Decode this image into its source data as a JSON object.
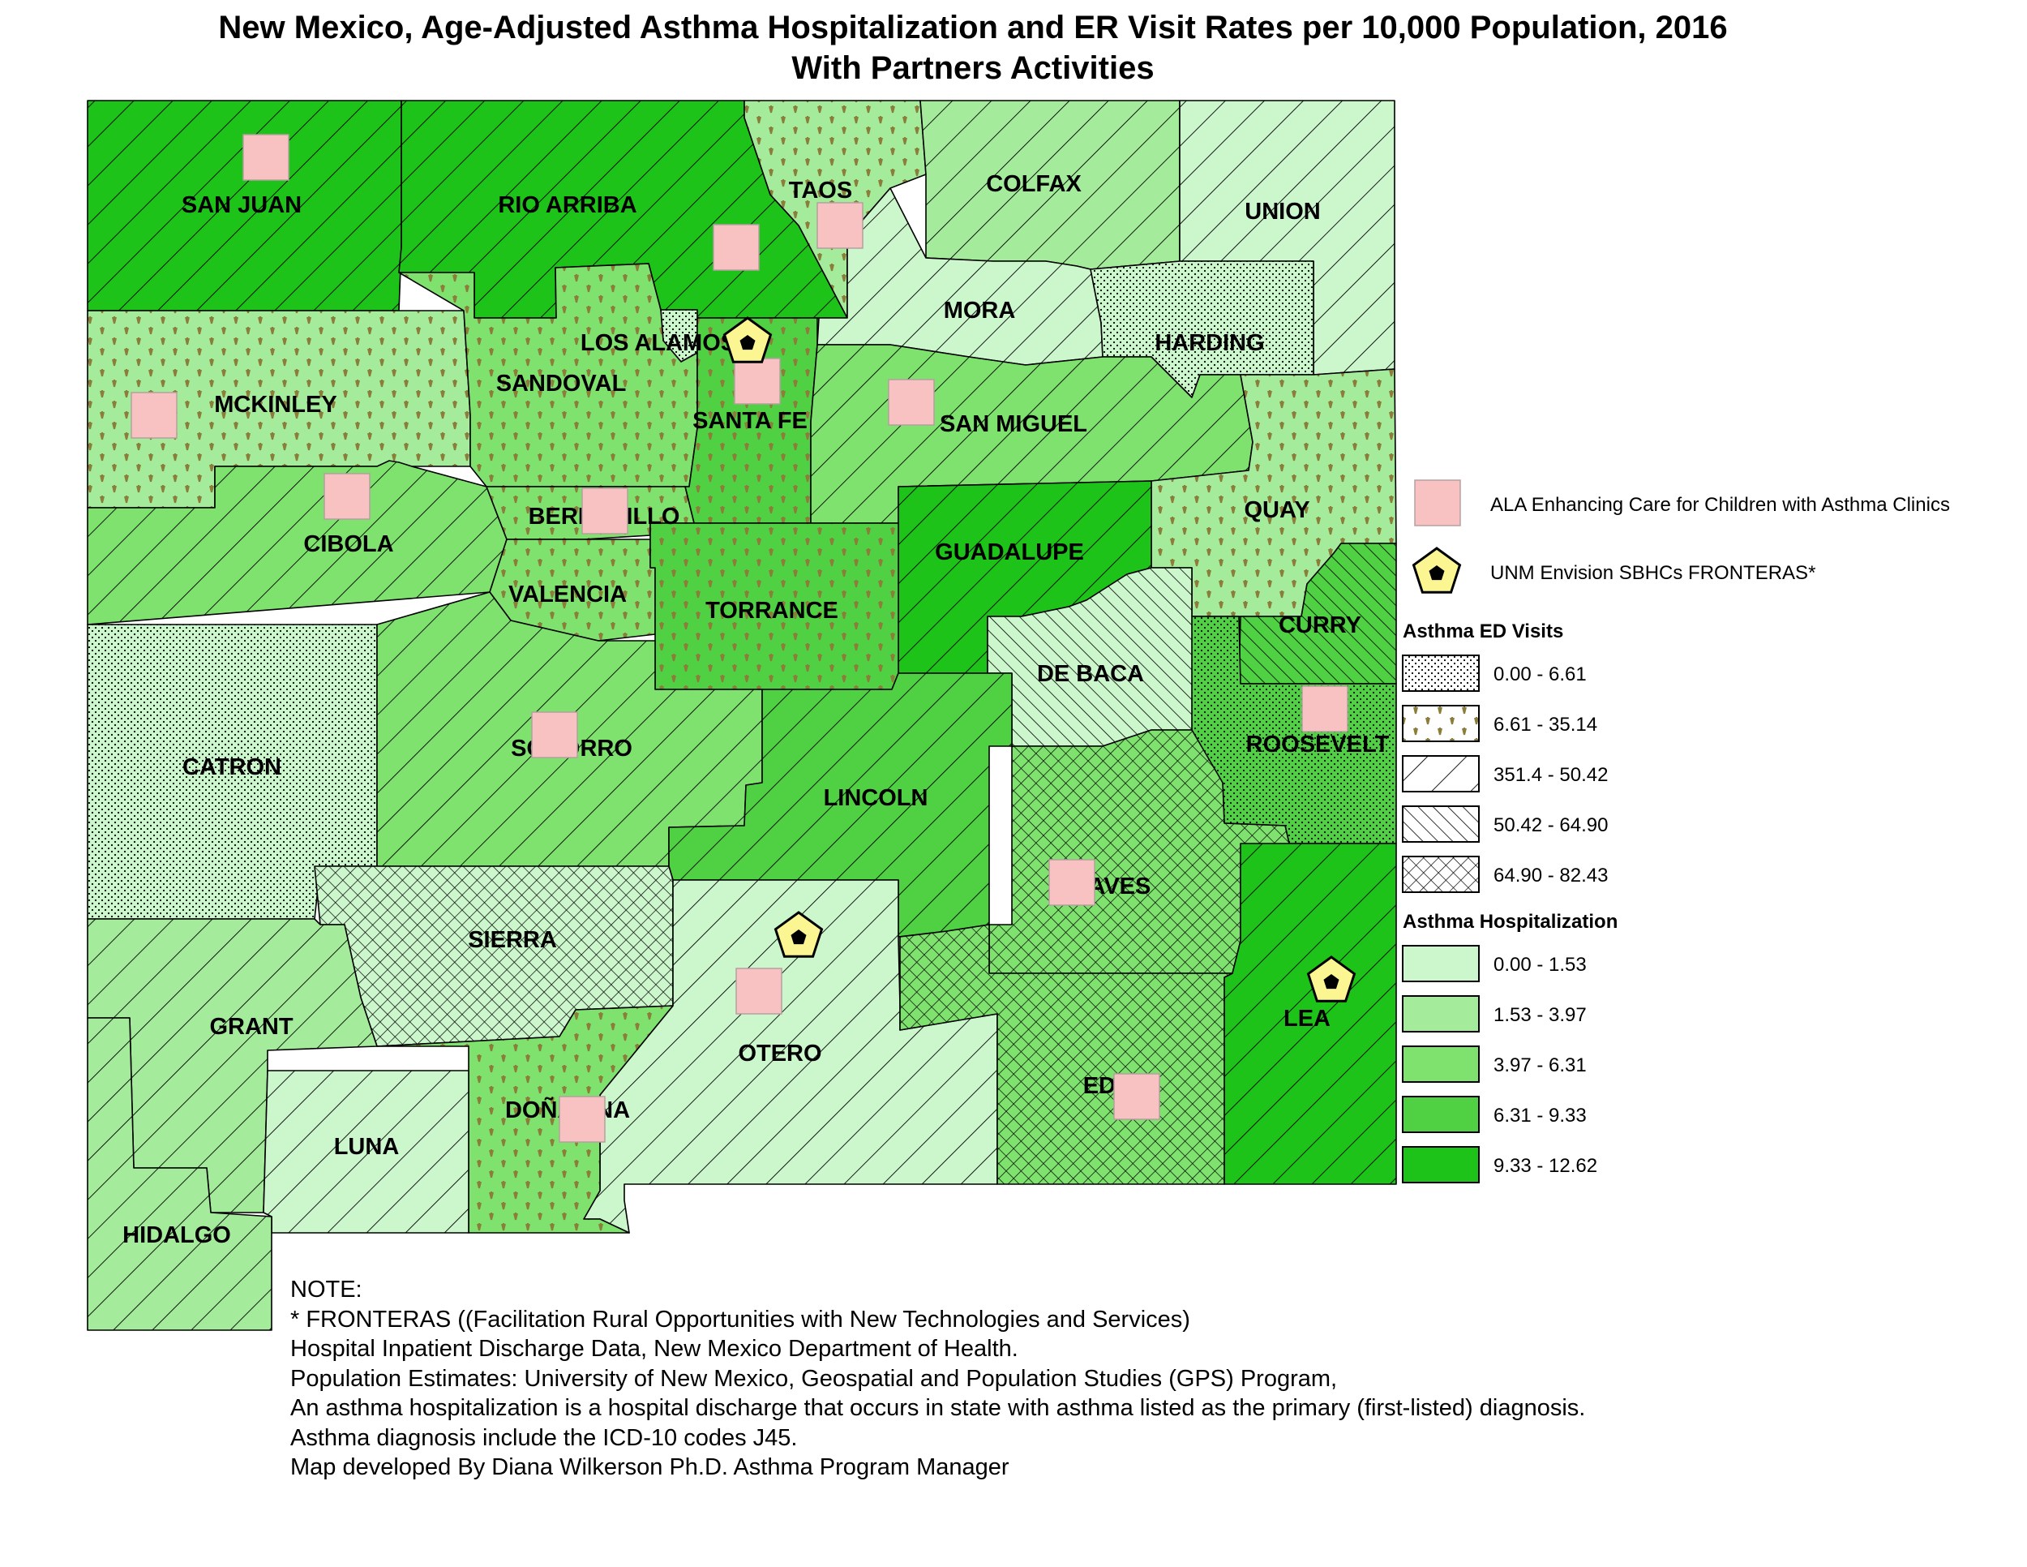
{
  "title": {
    "line1": "New Mexico, Age-Adjusted Asthma Hospitalization and ER Visit Rates per 10,000 Population, 2016",
    "line2": "With Partners Activities"
  },
  "counties": [
    {
      "id": "san-juan",
      "name": "SAN JUAN",
      "hosp_class": "9.33 - 12.62",
      "ed_class": "351.4 - 50.42",
      "ala_clinic": true,
      "fronteras": false
    },
    {
      "id": "rio-arriba",
      "name": "RIO ARRIBA",
      "hosp_class": "9.33 - 12.62",
      "ed_class": "351.4 - 50.42",
      "ala_clinic": true,
      "fronteras": false
    },
    {
      "id": "taos",
      "name": "TAOS",
      "hosp_class": "1.53 - 3.97",
      "ed_class": "6.61 - 35.14",
      "ala_clinic": true,
      "fronteras": false
    },
    {
      "id": "colfax",
      "name": "COLFAX",
      "hosp_class": "1.53 - 3.97",
      "ed_class": "351.4 - 50.42",
      "ala_clinic": false,
      "fronteras": false
    },
    {
      "id": "union",
      "name": "UNION",
      "hosp_class": "0.00 - 1.53",
      "ed_class": "351.4 - 50.42",
      "ala_clinic": false,
      "fronteras": false
    },
    {
      "id": "mora",
      "name": "MORA",
      "hosp_class": "0.00 - 1.53",
      "ed_class": "351.4 - 50.42",
      "ala_clinic": false,
      "fronteras": false
    },
    {
      "id": "harding",
      "name": "HARDING",
      "hosp_class": "0.00 - 1.53",
      "ed_class": "0.00 - 6.61",
      "ala_clinic": false,
      "fronteras": false
    },
    {
      "id": "los-alamos",
      "name": "LOS ALAMOS",
      "hosp_class": "0.00 - 1.53",
      "ed_class": "0.00 - 6.61",
      "ala_clinic": false,
      "fronteras": true
    },
    {
      "id": "mckinley",
      "name": "MCKINLEY",
      "hosp_class": "1.53 - 3.97",
      "ed_class": "6.61 - 35.14",
      "ala_clinic": true,
      "fronteras": false
    },
    {
      "id": "sandoval",
      "name": "SANDOVAL",
      "hosp_class": "3.97 - 6.31",
      "ed_class": "6.61 - 35.14",
      "ala_clinic": false,
      "fronteras": false
    },
    {
      "id": "santa-fe",
      "name": "SANTA FE",
      "hosp_class": "6.31 - 9.33",
      "ed_class": "6.61 - 35.14",
      "ala_clinic": true,
      "fronteras": false
    },
    {
      "id": "san-miguel",
      "name": "SAN MIGUEL",
      "hosp_class": "3.97 - 6.31",
      "ed_class": "351.4 - 50.42",
      "ala_clinic": true,
      "fronteras": false
    },
    {
      "id": "cibola",
      "name": "CIBOLA",
      "hosp_class": "3.97 - 6.31",
      "ed_class": "351.4 - 50.42",
      "ala_clinic": true,
      "fronteras": false
    },
    {
      "id": "bernalillo",
      "name": "BERNALILLO",
      "hosp_class": "3.97 - 6.31",
      "ed_class": "6.61 - 35.14",
      "ala_clinic": true,
      "fronteras": false
    },
    {
      "id": "quay",
      "name": "QUAY",
      "hosp_class": "1.53 - 3.97",
      "ed_class": "6.61 - 35.14",
      "ala_clinic": false,
      "fronteras": false
    },
    {
      "id": "guadalupe",
      "name": "GUADALUPE",
      "hosp_class": "9.33 - 12.62",
      "ed_class": "351.4 - 50.42",
      "ala_clinic": false,
      "fronteras": false
    },
    {
      "id": "valencia",
      "name": "VALENCIA",
      "hosp_class": "3.97 - 6.31",
      "ed_class": "6.61 - 35.14",
      "ala_clinic": false,
      "fronteras": false
    },
    {
      "id": "torrance",
      "name": "TORRANCE",
      "hosp_class": "6.31 - 9.33",
      "ed_class": "6.61 - 35.14",
      "ala_clinic": false,
      "fronteras": false
    },
    {
      "id": "curry",
      "name": "CURRY",
      "hosp_class": "6.31 - 9.33",
      "ed_class": "50.42 - 64.90",
      "ala_clinic": false,
      "fronteras": false
    },
    {
      "id": "de-baca",
      "name": "DE BACA",
      "hosp_class": "0.00 - 1.53",
      "ed_class": "50.42 - 64.90",
      "ala_clinic": false,
      "fronteras": false
    },
    {
      "id": "catron",
      "name": "CATRON",
      "hosp_class": "0.00 - 1.53",
      "ed_class": "0.00 - 6.61",
      "ala_clinic": false,
      "fronteras": false
    },
    {
      "id": "socorro",
      "name": "SOCORRO",
      "hosp_class": "3.97 - 6.31",
      "ed_class": "351.4 - 50.42",
      "ala_clinic": true,
      "fronteras": false
    },
    {
      "id": "roosevelt",
      "name": "ROOSEVELT",
      "hosp_class": "6.31 - 9.33",
      "ed_class": "0.00 - 6.61",
      "ala_clinic": true,
      "fronteras": false
    },
    {
      "id": "lincoln",
      "name": "LINCOLN",
      "hosp_class": "6.31 - 9.33",
      "ed_class": "351.4 - 50.42",
      "ala_clinic": false,
      "fronteras": false
    },
    {
      "id": "chaves",
      "name": "CHAVES",
      "hosp_class": "3.97 - 6.31",
      "ed_class": "64.90 - 82.43",
      "ala_clinic": true,
      "fronteras": false
    },
    {
      "id": "sierra",
      "name": "SIERRA",
      "hosp_class": "0.00 - 1.53",
      "ed_class": "64.90 - 82.43",
      "ala_clinic": false,
      "fronteras": false
    },
    {
      "id": "grant",
      "name": "GRANT",
      "hosp_class": "1.53 - 3.97",
      "ed_class": "351.4 - 50.42",
      "ala_clinic": false,
      "fronteras": false
    },
    {
      "id": "lea",
      "name": "LEA",
      "hosp_class": "9.33 - 12.62",
      "ed_class": "351.4 - 50.42",
      "ala_clinic": false,
      "fronteras": true
    },
    {
      "id": "otero",
      "name": "OTERO",
      "hosp_class": "0.00 - 1.53",
      "ed_class": "351.4 - 50.42",
      "ala_clinic": true,
      "fronteras": true
    },
    {
      "id": "eddy",
      "name": "EDDY",
      "hosp_class": "3.97 - 6.31",
      "ed_class": "64.90 - 82.43",
      "ala_clinic": true,
      "fronteras": false
    },
    {
      "id": "dona-ana",
      "name": "DOÑA ANA",
      "hosp_class": "3.97 - 6.31",
      "ed_class": "6.61 - 35.14",
      "ala_clinic": true,
      "fronteras": false
    },
    {
      "id": "luna",
      "name": "LUNA",
      "hosp_class": "0.00 - 1.53",
      "ed_class": "351.4 - 50.42",
      "ala_clinic": false,
      "fronteras": false
    },
    {
      "id": "hidalgo",
      "name": "HIDALGO",
      "hosp_class": "1.53 - 3.97",
      "ed_class": "351.4 - 50.42",
      "ala_clinic": false,
      "fronteras": false
    }
  ],
  "legend": {
    "ala_label": "ALA Enhancing Care for Children with Asthma Clinics",
    "fronteras_label": "UNM Envision SBHCs FRONTERAS*",
    "ed_title": "Asthma ED Visits",
    "ed_classes": [
      {
        "label": "0.00 - 6.61",
        "pattern": "dots"
      },
      {
        "label": "6.61 - 35.14",
        "pattern": "tufts"
      },
      {
        "label": "351.4 - 50.42",
        "pattern": "hatch-wide"
      },
      {
        "label": "50.42 - 64.90",
        "pattern": "hatch-back"
      },
      {
        "label": "64.90 - 82.43",
        "pattern": "crosshatch"
      }
    ],
    "hosp_title": "Asthma Hospitalization",
    "hosp_classes": [
      {
        "label": "0.00 - 1.53",
        "color": "#ccf7cc"
      },
      {
        "label": "1.53 - 3.97",
        "color": "#a4ec9c"
      },
      {
        "label": "3.97 - 6.31",
        "color": "#7fe26f"
      },
      {
        "label": "6.31 - 9.33",
        "color": "#4fd143"
      },
      {
        "label": "9.33 - 12.62",
        "color": "#1ec31a"
      }
    ]
  },
  "colors": {
    "ala_marker": "#f9c2c2",
    "fronteras_marker": "#fbf592",
    "outline": "#000000",
    "tuft_color": "#8b7d3a"
  },
  "notes": [
    "NOTE:",
    "* FRONTERAS ((Facilitation Rural Opportunities with New Technologies and Services)",
    "Hospital Inpatient Discharge Data, New Mexico Department of Health.",
    "Population Estimates: University of New Mexico, Geospatial and Population Studies (GPS) Program,",
    "An asthma hospitalization is a hospital discharge that occurs in state with asthma listed as the primary (first-listed) diagnosis.",
    "Asthma diagnosis include the ICD-10 codes J45.",
    "Map developed By Diana Wilkerson Ph.D. Asthma Program Manager"
  ]
}
